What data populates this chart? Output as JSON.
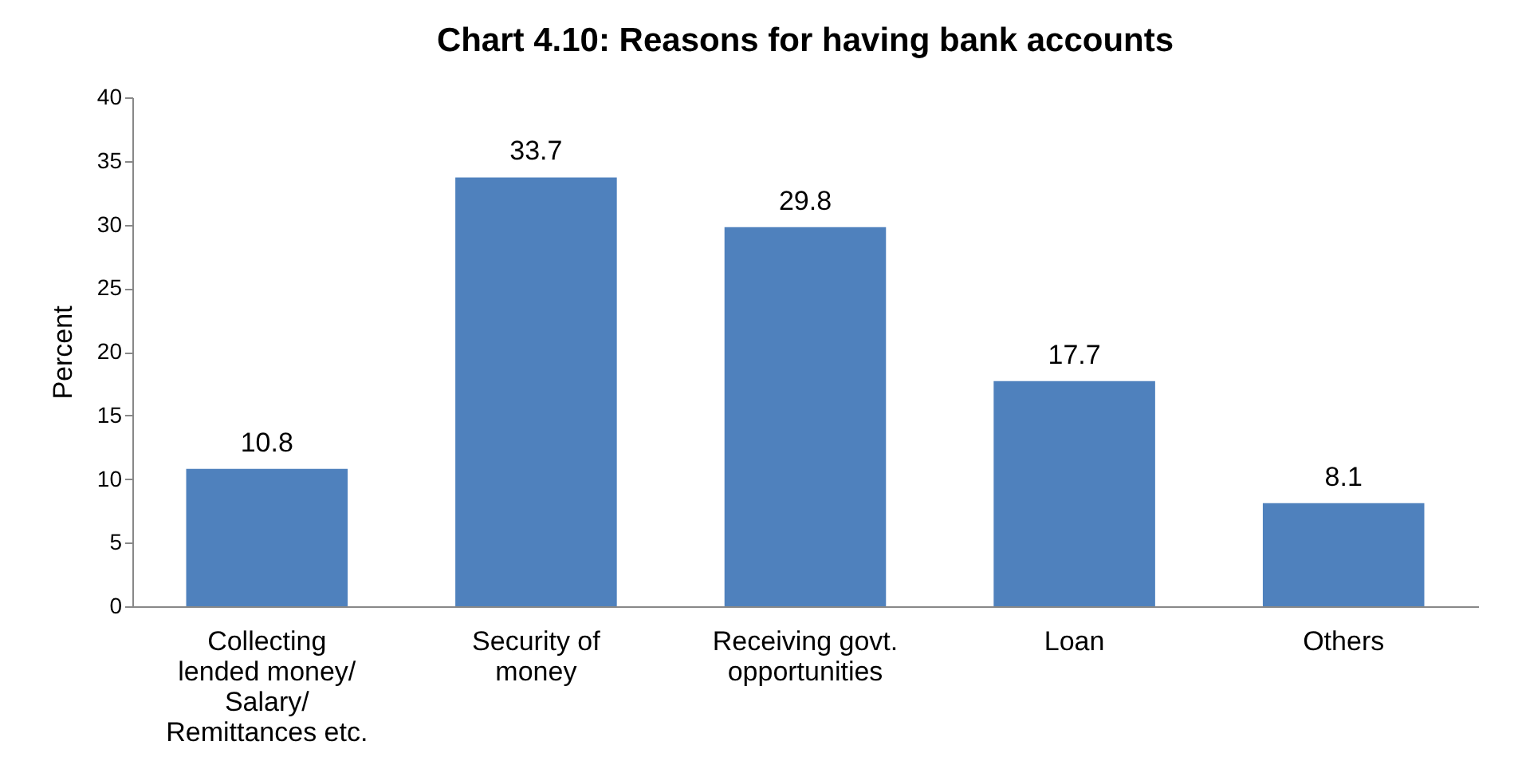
{
  "chart_data": {
    "type": "bar",
    "title": "Chart 4.10: Reasons for having bank accounts",
    "ylabel": "Percent",
    "categories": [
      "Collecting lended money/ Salary/ Remittances etc.",
      "Security of money",
      "Receiving govt. opportunities",
      "Loan",
      "Others"
    ],
    "values": [
      10.8,
      33.7,
      29.8,
      17.7,
      8.1
    ],
    "color": "#4f81bd",
    "ylim": [
      0,
      40
    ],
    "yticks": [
      0,
      5,
      10,
      15,
      20,
      25,
      30,
      35,
      40
    ],
    "grid": false,
    "data_labels": true
  }
}
